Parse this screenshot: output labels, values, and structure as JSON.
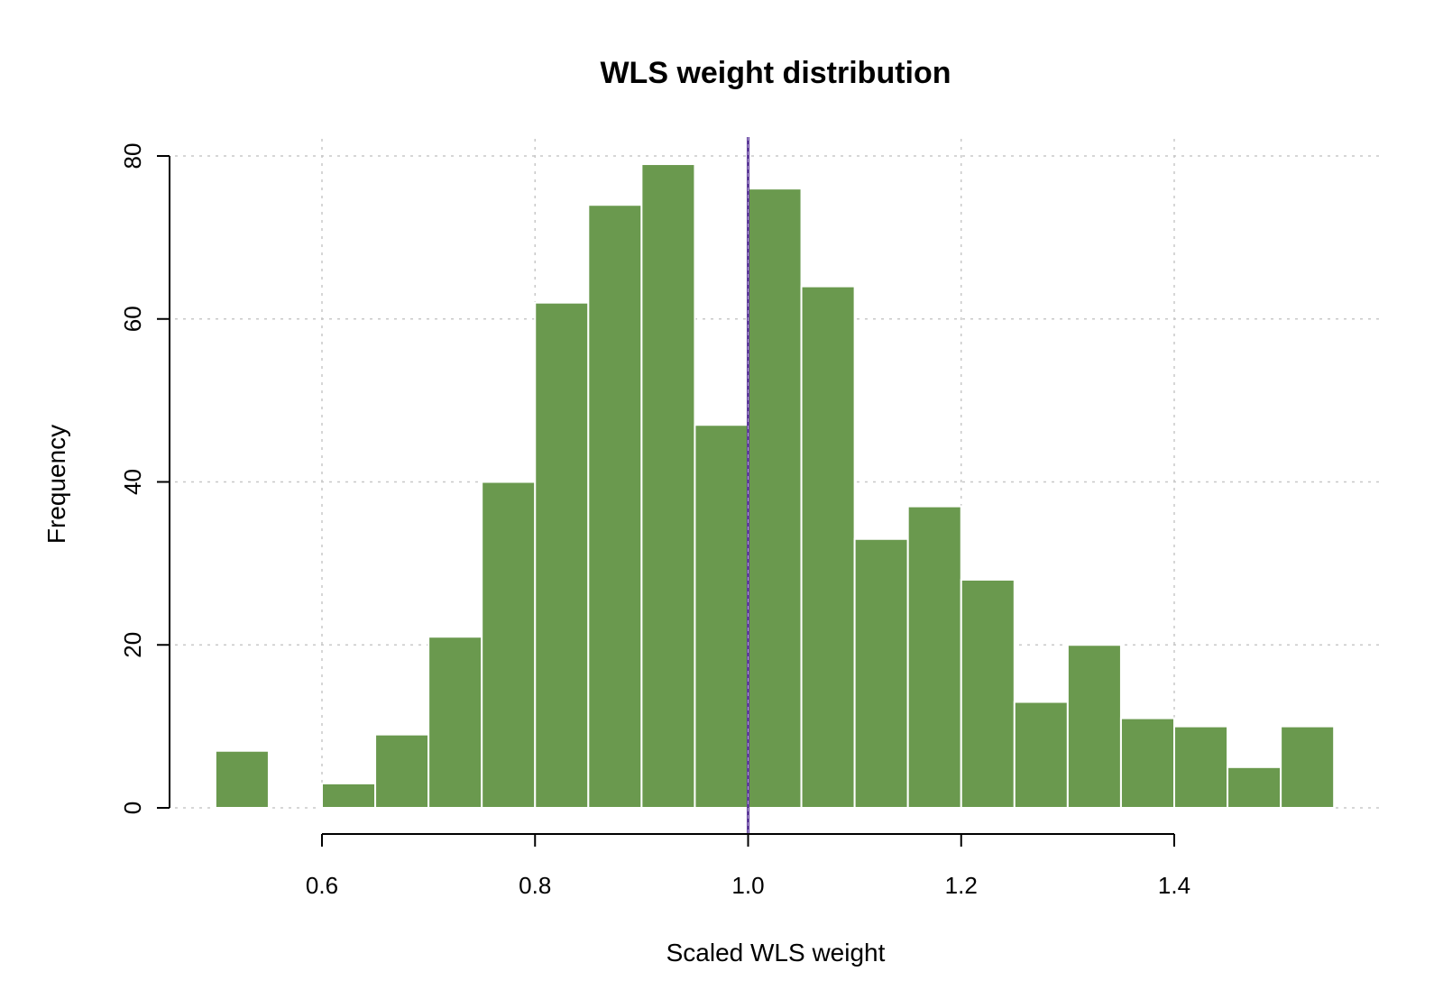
{
  "colors": {
    "bar_fill": "#6a994e",
    "bar_border": "#ffffff",
    "reference_line": "#5e3c99",
    "grid": "#c8c8c8"
  },
  "chart_data": {
    "type": "bar",
    "subtype": "histogram",
    "title": "WLS weight distribution",
    "xlabel": "Scaled WLS weight",
    "ylabel": "Frequency",
    "xlim": [
      0.5,
      1.55
    ],
    "ylim": [
      0,
      80
    ],
    "x_ticks": [
      "0.6",
      "0.8",
      "1.0",
      "1.2",
      "1.4"
    ],
    "y_ticks": [
      "0",
      "20",
      "40",
      "60",
      "80"
    ],
    "grid": true,
    "bin_width": 0.05,
    "bins": [
      {
        "x0": 0.5,
        "x1": 0.55,
        "count": 7
      },
      {
        "x0": 0.55,
        "x1": 0.6,
        "count": 0
      },
      {
        "x0": 0.6,
        "x1": 0.65,
        "count": 3
      },
      {
        "x0": 0.65,
        "x1": 0.7,
        "count": 9
      },
      {
        "x0": 0.7,
        "x1": 0.75,
        "count": 21
      },
      {
        "x0": 0.75,
        "x1": 0.8,
        "count": 40
      },
      {
        "x0": 0.8,
        "x1": 0.85,
        "count": 62
      },
      {
        "x0": 0.85,
        "x1": 0.9,
        "count": 74
      },
      {
        "x0": 0.9,
        "x1": 0.95,
        "count": 79
      },
      {
        "x0": 0.95,
        "x1": 1.0,
        "count": 47
      },
      {
        "x0": 1.0,
        "x1": 1.05,
        "count": 76
      },
      {
        "x0": 1.05,
        "x1": 1.1,
        "count": 64
      },
      {
        "x0": 1.1,
        "x1": 1.15,
        "count": 33
      },
      {
        "x0": 1.15,
        "x1": 1.2,
        "count": 37
      },
      {
        "x0": 1.2,
        "x1": 1.25,
        "count": 28
      },
      {
        "x0": 1.25,
        "x1": 1.3,
        "count": 13
      },
      {
        "x0": 1.3,
        "x1": 1.35,
        "count": 20
      },
      {
        "x0": 1.35,
        "x1": 1.4,
        "count": 11
      },
      {
        "x0": 1.4,
        "x1": 1.45,
        "count": 10
      },
      {
        "x0": 1.45,
        "x1": 1.5,
        "count": 5
      },
      {
        "x0": 1.5,
        "x1": 1.55,
        "count": 10
      }
    ],
    "reference_line_x": 1.0
  }
}
